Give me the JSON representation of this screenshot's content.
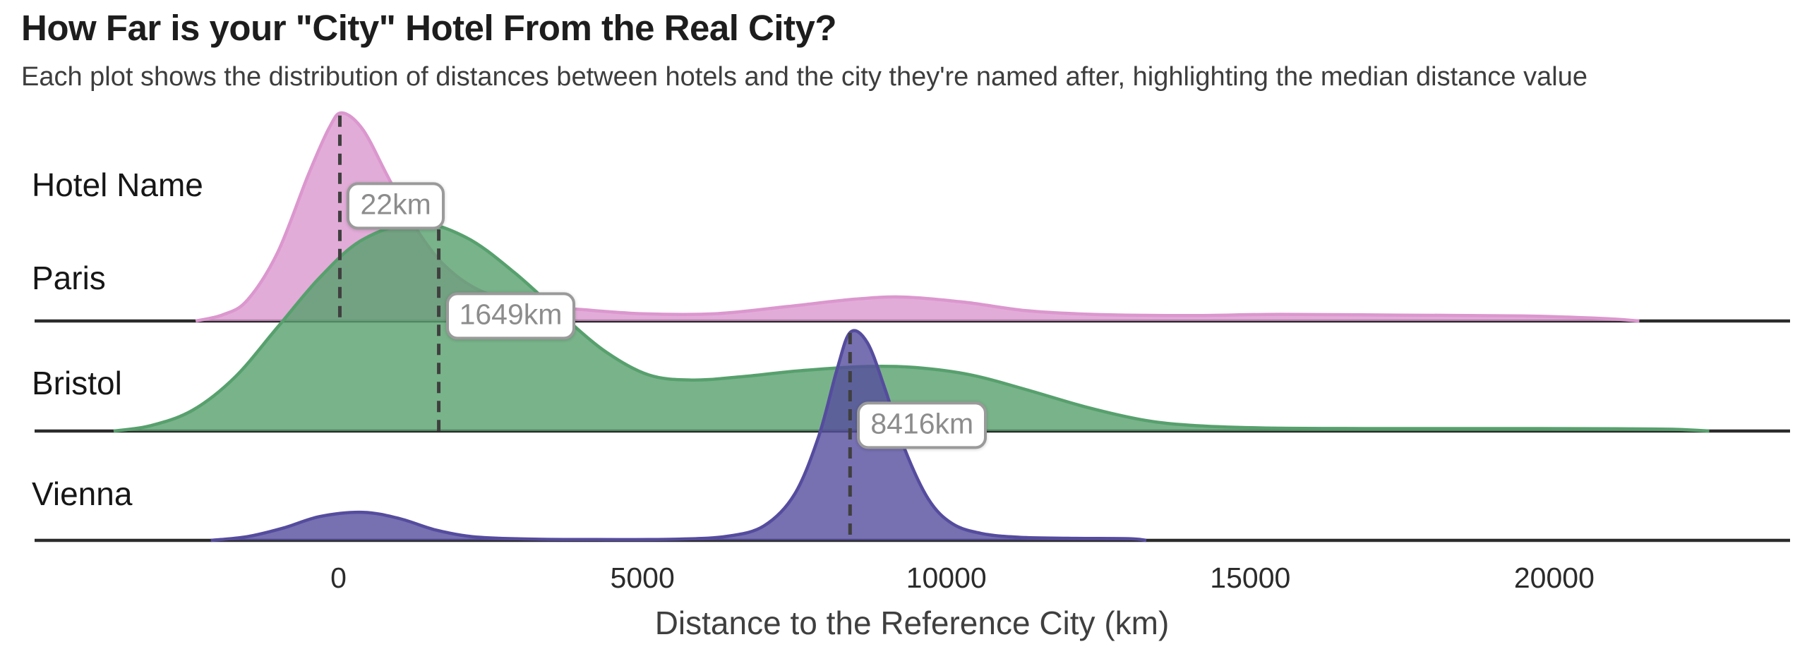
{
  "header": {
    "title": "How Far is your \"City\" Hotel From the Real City?",
    "subtitle": "Each plot shows the distribution of distances between hotels and the city they're named after, highlighting the median distance value"
  },
  "chart_data": {
    "type": "area",
    "variant": "ridgeline-density",
    "title": "How Far is your \"City\" Hotel From the Real City?",
    "subtitle": "Each plot shows the distribution of distances between hotels and the city they're named after, highlighting the median distance value",
    "xlabel": "Distance to the Reference City (km)",
    "ylabel": "Hotel Name",
    "x_domain_km": [
      -5000,
      23880
    ],
    "x_ticks": [
      0,
      5000,
      10000,
      15000,
      20000
    ],
    "x_tick_labels": [
      "0",
      "5000",
      "10000",
      "15000",
      "20000"
    ],
    "grid": false,
    "legend": "none",
    "styles": {
      "baseline_color": "#2b2b2b",
      "median_line_color": "#3f3f3f",
      "label_box_border": "#9a9a9a",
      "label_box_text": "#8c8c8c",
      "fill_opacity": 0.8
    },
    "rows": [
      {
        "city": "Paris",
        "color": "#db97ce",
        "median_km": 22,
        "median_label": "22km",
        "density": [
          [
            -2350,
            0
          ],
          [
            -1900,
            0.03
          ],
          [
            -1500,
            0.1
          ],
          [
            -1000,
            0.33
          ],
          [
            -500,
            0.7
          ],
          [
            -150,
            0.93
          ],
          [
            60,
            1.0
          ],
          [
            400,
            0.92
          ],
          [
            800,
            0.7
          ],
          [
            1200,
            0.48
          ],
          [
            1700,
            0.28
          ],
          [
            2300,
            0.15
          ],
          [
            3100,
            0.08
          ],
          [
            4000,
            0.055
          ],
          [
            5000,
            0.035
          ],
          [
            6200,
            0.035
          ],
          [
            7400,
            0.07
          ],
          [
            8500,
            0.105
          ],
          [
            9300,
            0.115
          ],
          [
            10300,
            0.09
          ],
          [
            11300,
            0.05
          ],
          [
            12400,
            0.032
          ],
          [
            14000,
            0.026
          ],
          [
            15500,
            0.032
          ],
          [
            17500,
            0.028
          ],
          [
            19500,
            0.024
          ],
          [
            20800,
            0.012
          ],
          [
            21400,
            0
          ]
        ]
      },
      {
        "city": "Bristol",
        "color": "#57a06d",
        "median_km": 1649,
        "median_label": "1649km",
        "density": [
          [
            -3700,
            0
          ],
          [
            -3100,
            0.025
          ],
          [
            -2400,
            0.1
          ],
          [
            -1700,
            0.26
          ],
          [
            -1000,
            0.5
          ],
          [
            -300,
            0.74
          ],
          [
            400,
            0.92
          ],
          [
            1280,
            1.0
          ],
          [
            2100,
            0.93
          ],
          [
            2900,
            0.76
          ],
          [
            3700,
            0.55
          ],
          [
            4400,
            0.38
          ],
          [
            5100,
            0.27
          ],
          [
            5800,
            0.245
          ],
          [
            6600,
            0.26
          ],
          [
            7600,
            0.29
          ],
          [
            8700,
            0.31
          ],
          [
            9500,
            0.305
          ],
          [
            10400,
            0.27
          ],
          [
            11300,
            0.2
          ],
          [
            12300,
            0.115
          ],
          [
            13200,
            0.055
          ],
          [
            14000,
            0.028
          ],
          [
            15200,
            0.015
          ],
          [
            17000,
            0.012
          ],
          [
            19000,
            0.012
          ],
          [
            21000,
            0.011
          ],
          [
            22000,
            0.008
          ],
          [
            22550,
            0
          ]
        ]
      },
      {
        "city": "Vienna",
        "color": "#554c9e",
        "median_km": 8416,
        "median_label": "8416km",
        "density": [
          [
            -2100,
            0
          ],
          [
            -1500,
            0.018
          ],
          [
            -900,
            0.06
          ],
          [
            -300,
            0.115
          ],
          [
            400,
            0.135
          ],
          [
            1000,
            0.105
          ],
          [
            1600,
            0.05
          ],
          [
            2200,
            0.018
          ],
          [
            3000,
            0.007
          ],
          [
            4200,
            0.004
          ],
          [
            5600,
            0.006
          ],
          [
            6400,
            0.02
          ],
          [
            7000,
            0.07
          ],
          [
            7500,
            0.22
          ],
          [
            7900,
            0.5
          ],
          [
            8200,
            0.82
          ],
          [
            8420,
            1.0
          ],
          [
            8700,
            0.95
          ],
          [
            9000,
            0.72
          ],
          [
            9300,
            0.45
          ],
          [
            9700,
            0.2
          ],
          [
            10100,
            0.08
          ],
          [
            10600,
            0.032
          ],
          [
            11200,
            0.015
          ],
          [
            12000,
            0.01
          ],
          [
            13000,
            0.008
          ],
          [
            13290,
            0
          ]
        ]
      }
    ]
  }
}
